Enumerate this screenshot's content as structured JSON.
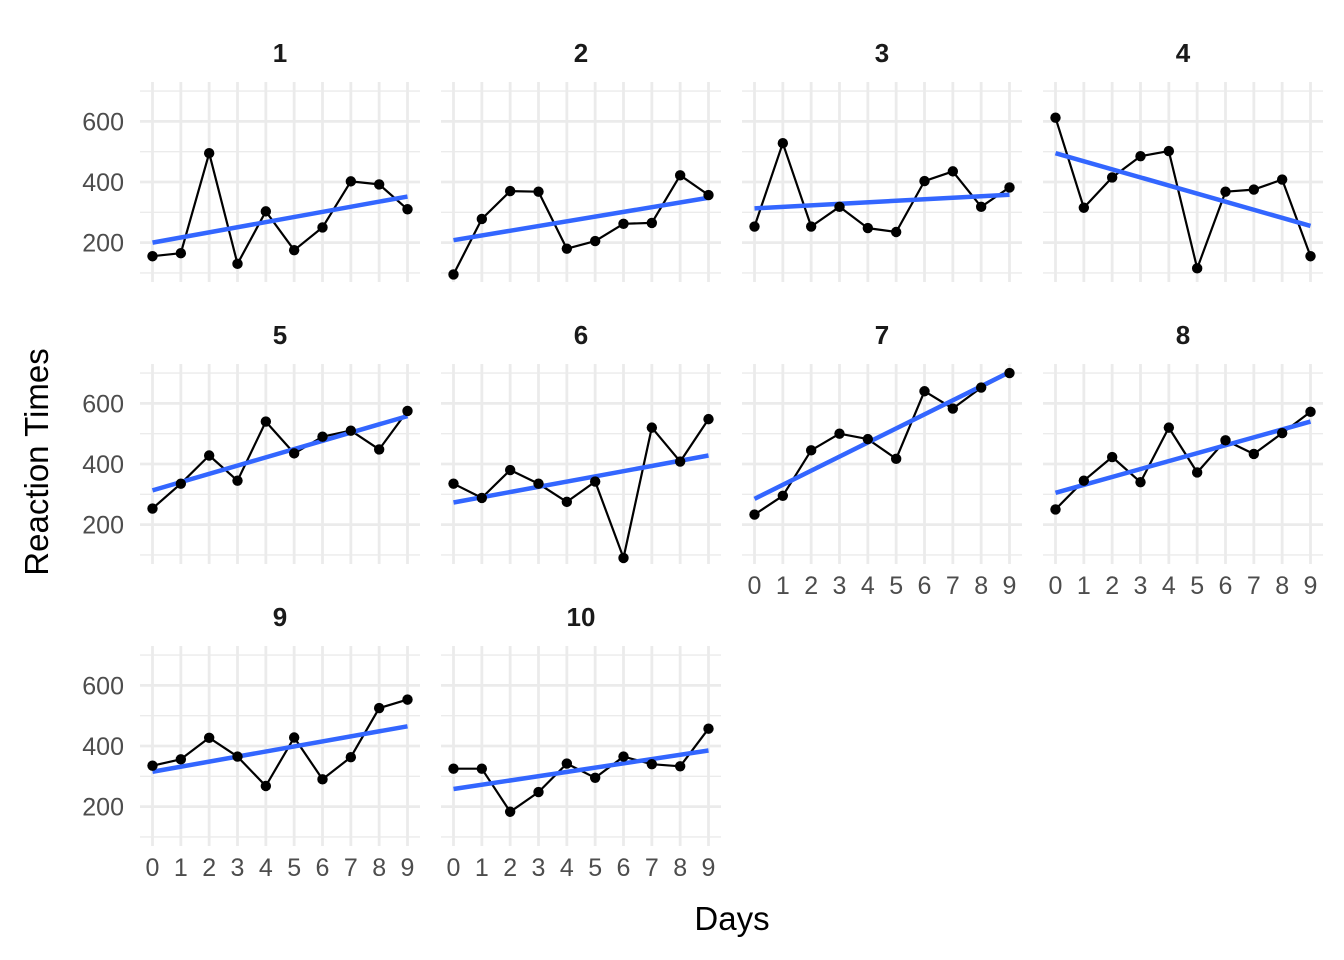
{
  "chart_data": {
    "type": "line",
    "facet_by": "subject",
    "xlabel": "Days",
    "ylabel": "Reaction Times",
    "x": [
      0,
      1,
      2,
      3,
      4,
      5,
      6,
      7,
      8,
      9
    ],
    "x_ticks": [
      "0",
      "1",
      "2",
      "3",
      "4",
      "5",
      "6",
      "7",
      "8",
      "9"
    ],
    "y_ticks": [
      200,
      400,
      600
    ],
    "xlim": [
      0,
      9
    ],
    "ylim": [
      70,
      720
    ],
    "grid": true,
    "layout": {
      "columns": 4,
      "rows": 3
    },
    "colors": {
      "points": "#000000",
      "line": "#000000",
      "fit": "#3366ff",
      "grid": "#ebebeb"
    },
    "overlay": "linear fit",
    "panels": [
      {
        "label": "1",
        "values": [
          155,
          165,
          495,
          130,
          303,
          175,
          250,
          402,
          392,
          310
        ],
        "fit": [
          200,
          352
        ]
      },
      {
        "label": "2",
        "values": [
          95,
          278,
          370,
          368,
          180,
          205,
          262,
          265,
          422,
          357
        ],
        "fit": [
          208,
          348
        ]
      },
      {
        "label": "3",
        "values": [
          253,
          528,
          253,
          318,
          248,
          235,
          403,
          435,
          318,
          382
        ],
        "fit": [
          313,
          358
        ]
      },
      {
        "label": "4",
        "values": [
          612,
          315,
          415,
          485,
          502,
          115,
          368,
          375,
          408,
          155
        ],
        "fit": [
          495,
          255
        ]
      },
      {
        "label": "5",
        "values": [
          253,
          335,
          428,
          345,
          540,
          435,
          490,
          510,
          448,
          575
        ],
        "fit": [
          313,
          558
        ]
      },
      {
        "label": "6",
        "values": [
          335,
          288,
          380,
          335,
          275,
          342,
          90,
          520,
          408,
          548
        ],
        "fit": [
          273,
          428
        ]
      },
      {
        "label": "7",
        "values": [
          233,
          295,
          445,
          500,
          482,
          417,
          640,
          583,
          652,
          700
        ],
        "fit": [
          285,
          703
        ]
      },
      {
        "label": "8",
        "values": [
          250,
          345,
          423,
          340,
          520,
          372,
          478,
          433,
          502,
          572
        ],
        "fit": [
          305,
          540
        ]
      },
      {
        "label": "9",
        "values": [
          335,
          356,
          427,
          365,
          268,
          428,
          290,
          363,
          525,
          553
        ],
        "fit": [
          315,
          465
        ]
      },
      {
        "label": "10",
        "values": [
          325,
          325,
          183,
          248,
          342,
          295,
          365,
          340,
          333,
          457
        ],
        "fit": [
          258,
          385
        ]
      }
    ]
  }
}
